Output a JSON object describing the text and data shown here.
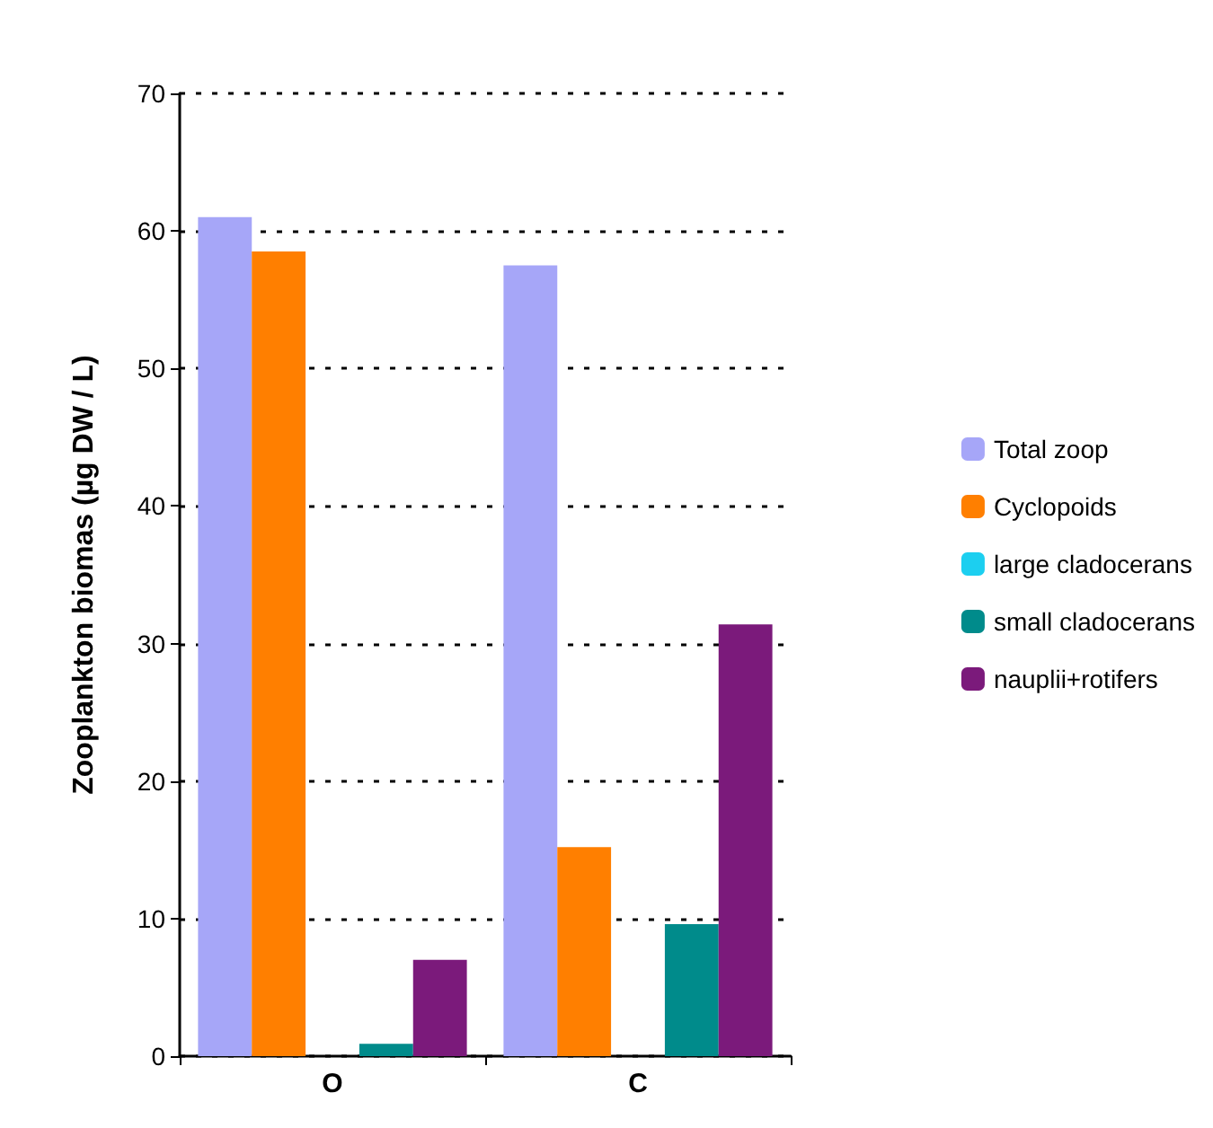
{
  "chart_data": {
    "type": "bar",
    "ylabel": "Zooplankton biomas (µg DW / L)",
    "categories": [
      "O",
      "C"
    ],
    "series": [
      {
        "name": "Total zoop",
        "color": "#a6a6f8",
        "values": [
          61.0,
          57.5
        ]
      },
      {
        "name": "Cyclopoids",
        "color": "#ff7f00",
        "values": [
          58.5,
          15.2
        ]
      },
      {
        "name": "large cladocerans",
        "color": "#1ccff0",
        "values": [
          0,
          0
        ]
      },
      {
        "name": "small cladocerans",
        "color": "#008b8b",
        "values": [
          0.9,
          9.6
        ]
      },
      {
        "name": "nauplii+rotifers",
        "color": "#7b1a7b",
        "values": [
          7.0,
          31.4
        ]
      }
    ],
    "ylim": [
      0,
      70
    ],
    "yticks": [
      0,
      10,
      20,
      30,
      40,
      50,
      60,
      70
    ],
    "grid": "y",
    "legend": "right"
  }
}
